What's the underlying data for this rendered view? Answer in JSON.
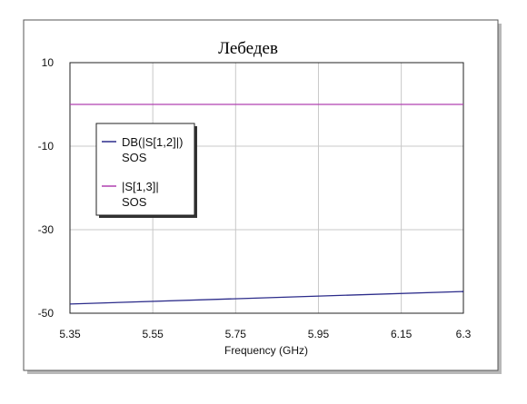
{
  "chart_data": {
    "type": "line",
    "title": "Лебедев",
    "xlabel": "Frequency (GHz)",
    "ylabel": "",
    "xlim": [
      5.35,
      6.3
    ],
    "ylim": [
      -50,
      10
    ],
    "x_ticks": [
      5.35,
      5.55,
      5.75,
      5.95,
      6.15,
      6.3
    ],
    "x_tick_labels": [
      "5.35",
      "5.55",
      "5.75",
      "5.95",
      "6.15",
      "6.3"
    ],
    "y_ticks": [
      10,
      -10,
      -30,
      -50
    ],
    "y_tick_labels": [
      "10",
      "-10",
      "-30",
      "-50"
    ],
    "grid": true,
    "legend_position": "left",
    "series": [
      {
        "name": "DB(|S[1,2]|)",
        "sublabel": "SOS",
        "color": "#2b2b8a",
        "x": [
          5.35,
          6.3
        ],
        "y": [
          -47.8,
          -44.8
        ]
      },
      {
        "name": "|S[1,3]|",
        "sublabel": "SOS",
        "color": "#b040b0",
        "x": [
          5.35,
          6.3
        ],
        "y": [
          0,
          0
        ]
      }
    ]
  }
}
